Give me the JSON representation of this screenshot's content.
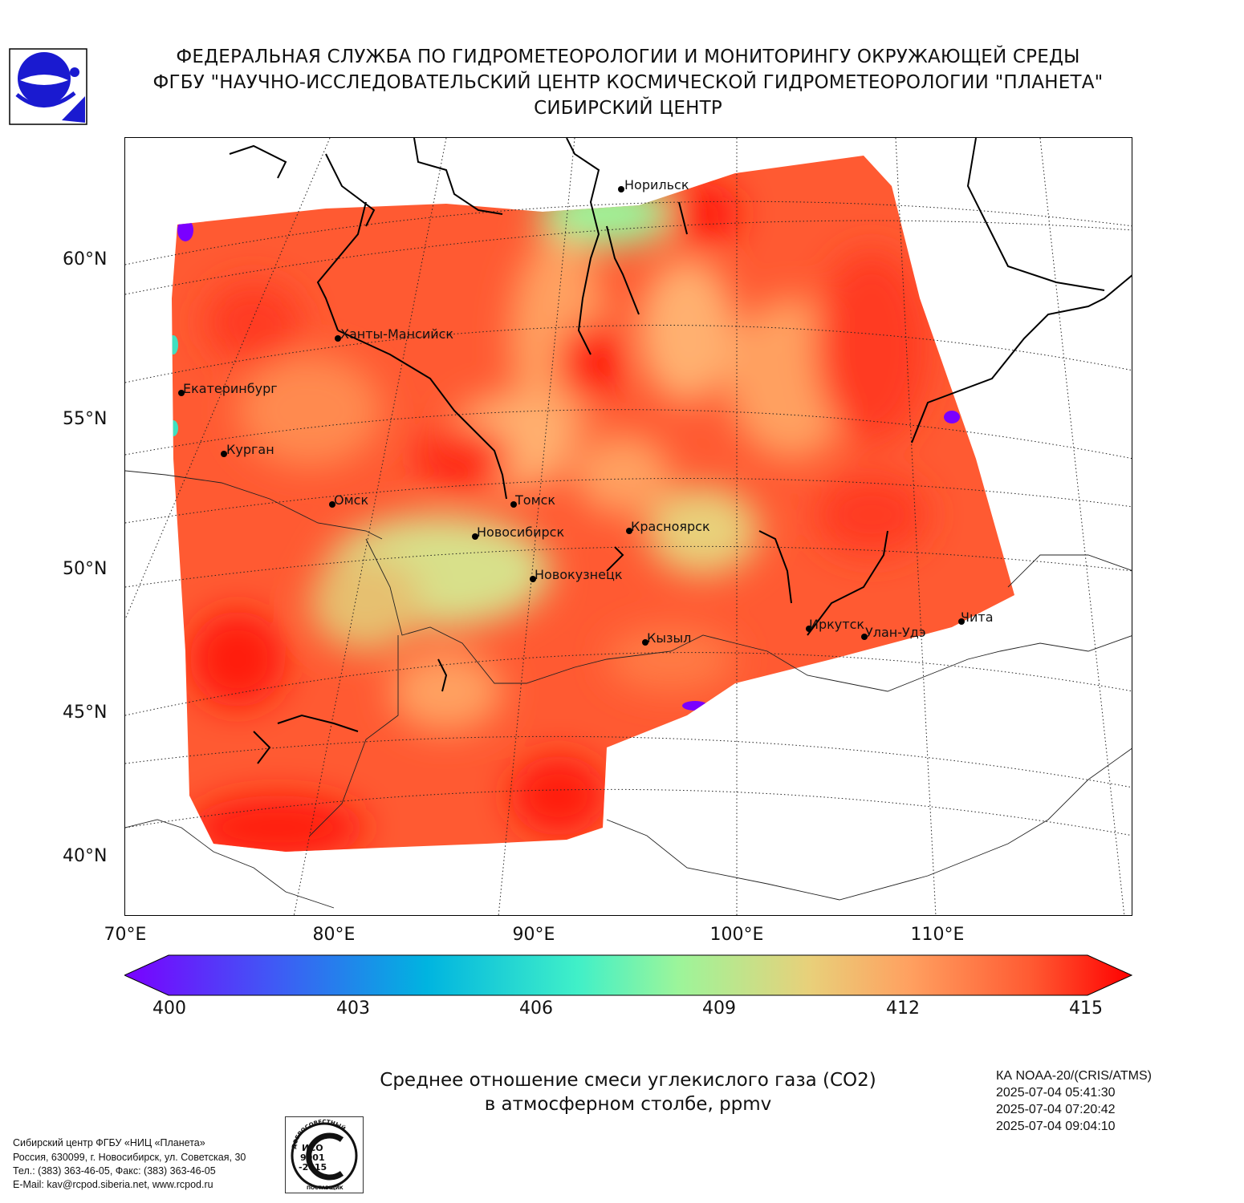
{
  "header": {
    "line1": "ФЕДЕРАЛЬНАЯ СЛУЖБА ПО ГИДРОМЕТЕОРОЛОГИИ И МОНИТОРИНГУ ОКРУЖАЮЩЕЙ СРЕДЫ",
    "line2": "ФГБУ \"НАУЧНО-ИССЛЕДОВАТЕЛЬСКИЙ ЦЕНТР КОСМИЧЕСКОЙ ГИДРОМЕТЕОРОЛОГИИ \"ПЛАНЕТА\"",
    "line3": "СИБИРСКИЙ ЦЕНТР"
  },
  "logo_icon": "roshydromet-logo",
  "map": {
    "lat_labels": [
      "60°N",
      "55°N",
      "50°N",
      "45°N",
      "40°N"
    ],
    "lon_labels": [
      "70°E",
      "80°E",
      "90°E",
      "100°E",
      "110°E"
    ],
    "cities": [
      {
        "name": "Норильск"
      },
      {
        "name": "Ханты-Мансийск"
      },
      {
        "name": "Екатеринбург"
      },
      {
        "name": "Курган"
      },
      {
        "name": "Омск"
      },
      {
        "name": "Томск"
      },
      {
        "name": "Новосибирск"
      },
      {
        "name": "Красноярск"
      },
      {
        "name": "Новокузнецк"
      },
      {
        "name": "Кызыл"
      },
      {
        "name": "Иркутск"
      },
      {
        "name": "Улан-Удэ"
      },
      {
        "name": "Чита"
      }
    ],
    "colors": {
      "dominant": "#ff5a32",
      "hot": "#ff1e10",
      "mid": "#ffa060",
      "cool": "#d8e08a",
      "cold": "#9cf59a",
      "min": "#7a00ff"
    }
  },
  "colorbar": {
    "ticks": [
      "400",
      "403",
      "406",
      "409",
      "412",
      "415"
    ],
    "min": 400,
    "max": 415,
    "extend": "both"
  },
  "caption": {
    "line1": "Среднее отношение смеси углекислого газа (CO2)",
    "line2": "в атмосферном столбе, ppmv"
  },
  "satellite": {
    "name": "КА NOAA-20/(CRIS/ATMS)",
    "times": [
      "2025-07-04 05:41:30",
      "2025-07-04 07:20:42",
      "2025-07-04 09:04:10"
    ]
  },
  "footer": {
    "lines": [
      "Сибирский центр ФГБУ «НИЦ «Планета»",
      "Россия, 630099, г. Новосибирск, ул. Советская, 30",
      "Тел.: (383) 363-46-05, Факс: (383) 363-46-05",
      "E-Mail: kav@rcpod.siberia.net, www.rcpod.ru"
    ]
  },
  "iso_badge": {
    "top_text": "ДОБРОСОВЕСТНЫЙ",
    "line1": "ИСО",
    "line2": "9001",
    "line3": "-2015",
    "bottom_text": "ПОСТАВЩИК"
  }
}
